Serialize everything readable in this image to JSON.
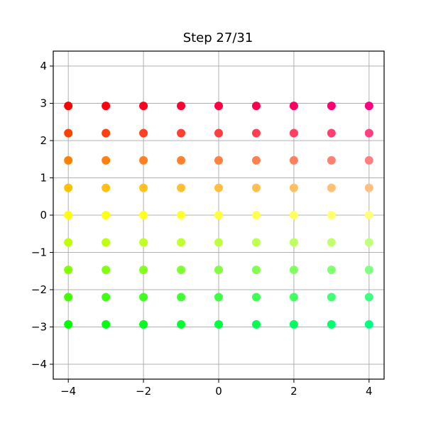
{
  "chart_data": {
    "type": "scatter",
    "title": "Step 27/31",
    "xlabel": "",
    "ylabel": "",
    "xlim": [
      -4.4,
      4.4
    ],
    "ylim": [
      -4.4,
      4.4
    ],
    "grid": true,
    "x_ticks": [
      -4,
      -2,
      0,
      2,
      4
    ],
    "x_tick_labels": [
      "−4",
      "−2",
      "0",
      "2",
      "4"
    ],
    "y_ticks": [
      -4,
      -3,
      -2,
      -1,
      0,
      1,
      2,
      3,
      4
    ],
    "y_tick_labels": [
      "−4",
      "−3",
      "−2",
      "−1",
      "0",
      "1",
      "2",
      "3",
      "4"
    ],
    "x": [
      -4,
      -3,
      -2,
      -1,
      0,
      1,
      2,
      3,
      4
    ],
    "y_rows": [
      2.93,
      2.2,
      1.47,
      0.73,
      0.0,
      -0.73,
      -1.47,
      -2.2,
      -2.93
    ],
    "row_colors": [
      [
        "#ff0000",
        "#ff0010",
        "#ff0020",
        "#ff0030",
        "#ff0040",
        "#ff0050",
        "#ff0060",
        "#ff0070",
        "#ff0080"
      ],
      [
        "#ff4000",
        "#ff4010",
        "#ff4020",
        "#ff4030",
        "#ff4040",
        "#ff4050",
        "#ff4060",
        "#ff4070",
        "#ff4080"
      ],
      [
        "#ff8000",
        "#ff8010",
        "#ff8020",
        "#ff8030",
        "#ff8040",
        "#ff8050",
        "#ff8060",
        "#ff8070",
        "#ff8080"
      ],
      [
        "#ffc000",
        "#ffc010",
        "#ffc020",
        "#ffc030",
        "#ffc040",
        "#ffc050",
        "#ffc060",
        "#ffc070",
        "#ffc080"
      ],
      [
        "#ffff00",
        "#ffff10",
        "#ffff20",
        "#ffff30",
        "#ffff40",
        "#ffff50",
        "#ffff60",
        "#ffff70",
        "#ffff80"
      ],
      [
        "#c0ff00",
        "#c0ff10",
        "#c0ff20",
        "#c0ff30",
        "#c0ff40",
        "#c0ff50",
        "#c0ff60",
        "#c0ff70",
        "#c0ff80"
      ],
      [
        "#80ff00",
        "#80ff10",
        "#80ff20",
        "#80ff30",
        "#80ff40",
        "#80ff50",
        "#80ff60",
        "#80ff70",
        "#80ff80"
      ],
      [
        "#40ff00",
        "#40ff10",
        "#40ff20",
        "#40ff30",
        "#40ff40",
        "#40ff50",
        "#40ff60",
        "#40ff70",
        "#40ff80"
      ],
      [
        "#00ff00",
        "#00ff10",
        "#00ff20",
        "#00ff30",
        "#00ff40",
        "#00ff50",
        "#00ff60",
        "#00ff70",
        "#00ff80"
      ]
    ],
    "grid_color": "#b0b0b0",
    "axis_color": "#000000"
  }
}
